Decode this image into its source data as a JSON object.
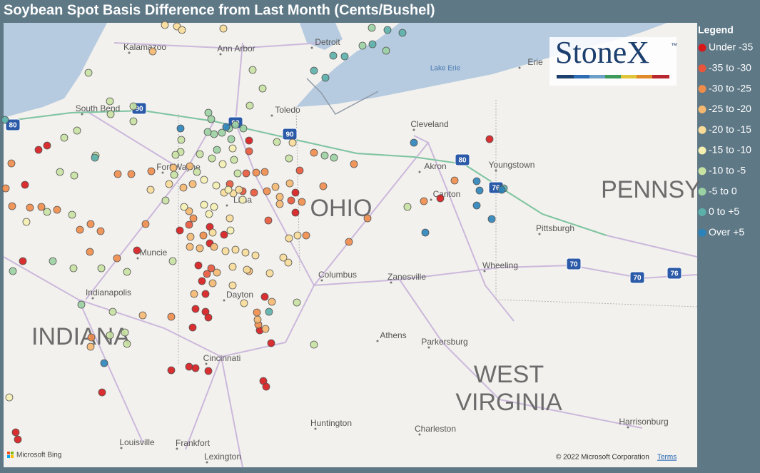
{
  "title": "Soybean Spot Basis Difference from Last Month (Cents/Bushel)",
  "legend": {
    "title": "Legend",
    "items": [
      {
        "label": "Under -35",
        "color": "#d7191c"
      },
      {
        "label": "-35 to -30",
        "color": "#e8553a"
      },
      {
        "label": "-30 to -25",
        "color": "#f08c4a"
      },
      {
        "label": "-25 to -20",
        "color": "#f5b870"
      },
      {
        "label": "-20 to -15",
        "color": "#f8dc98"
      },
      {
        "label": "-15 to -10",
        "color": "#f5f0b0"
      },
      {
        "label": "-10 to -5",
        "color": "#c8e2a2"
      },
      {
        "label": "-5 to 0",
        "color": "#9bd1a2"
      },
      {
        "label": "0 to +5",
        "color": "#5bb0aa"
      },
      {
        "label": "Over +5",
        "color": "#2b83ba"
      }
    ]
  },
  "logo": {
    "name": "StoneX",
    "mark": "™"
  },
  "map_labels": {
    "cities": [
      "Kalamazoo",
      "Ann Arbor",
      "Detroit",
      "Toledo",
      "South Bend",
      "Fort Wayne",
      "Lima",
      "Muncie",
      "Indianapolis",
      "Dayton",
      "Columbus",
      "Zanesville",
      "Athens",
      "Parkersburg",
      "Cincinnati",
      "Louisville",
      "Frankfort",
      "Lexington",
      "Huntington",
      "Charleston",
      "Harrisonburg",
      "Pittsburgh",
      "Wheeling",
      "Canton",
      "Akron",
      "Youngstown",
      "Cleveland",
      "Erie"
    ],
    "states": [
      "OHIO",
      "INDIANA",
      "WEST",
      "VIRGINIA",
      "PENNSY"
    ],
    "water": [
      "Lake Erie"
    ],
    "highways": [
      "90",
      "90",
      "90",
      "80",
      "80",
      "76",
      "76",
      "70",
      "70"
    ]
  },
  "footer": {
    "attribution": "Microsoft Bing",
    "copyright": "© 2022 Microsoft Corporation",
    "terms": "Terms"
  }
}
